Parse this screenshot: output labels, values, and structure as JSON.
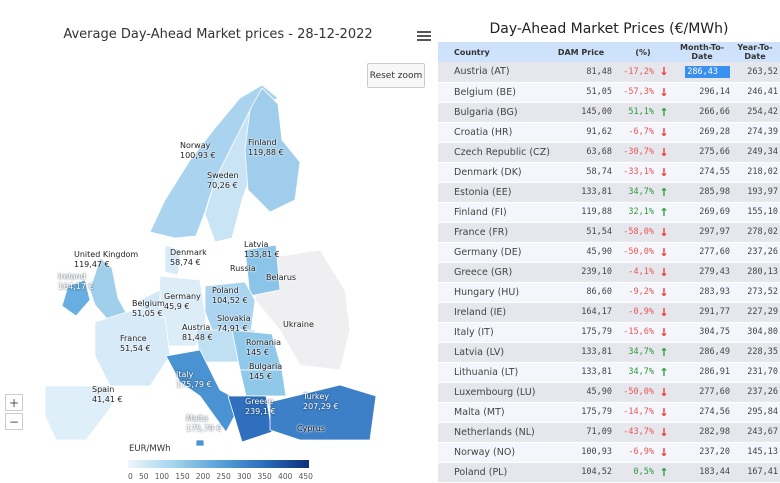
{
  "map": {
    "title": "Average Day-Ahead Market prices - 28-12-2022",
    "reset_zoom": "Reset zoom",
    "zoom_in": "+",
    "zoom_out": "−",
    "legend_title": "EUR/MWh",
    "legend_ticks": [
      "0",
      "50",
      "100",
      "150",
      "200",
      "250",
      "300",
      "350",
      "400",
      "450"
    ],
    "labels": [
      {
        "name": "Norway",
        "value": "100,93 €"
      },
      {
        "name": "Finland",
        "value": "119,88 €"
      },
      {
        "name": "Sweden",
        "value": "70,26 €"
      },
      {
        "name": "Latvia",
        "value": "133,81 €"
      },
      {
        "name": "Denmark",
        "value": "58,74 €"
      },
      {
        "name": "United Kingdom",
        "value": "119,47 €"
      },
      {
        "name": "Ireland",
        "value": "164,17 €"
      },
      {
        "name": "Russia",
        "value": ""
      },
      {
        "name": "Belarus",
        "value": ""
      },
      {
        "name": "Poland",
        "value": "104,52 €"
      },
      {
        "name": "Germany",
        "value": "45,9 €"
      },
      {
        "name": "Belgium",
        "value": "51,05 €"
      },
      {
        "name": "Slovakia",
        "value": "74,91 €"
      },
      {
        "name": "Ukraine",
        "value": ""
      },
      {
        "name": "Austria",
        "value": "81,48 €"
      },
      {
        "name": "France",
        "value": "51,54 €"
      },
      {
        "name": "Romania",
        "value": "145 €"
      },
      {
        "name": "Bulgaria",
        "value": "145 €"
      },
      {
        "name": "Italy",
        "value": "175,79 €"
      },
      {
        "name": "Spain",
        "value": "41,41 €"
      },
      {
        "name": "Greece",
        "value": "239,1 €"
      },
      {
        "name": "Turkey",
        "value": "207,29 €"
      },
      {
        "name": "Malta",
        "value": "175,79 €"
      },
      {
        "name": "Cyprus",
        "value": ""
      }
    ]
  },
  "table": {
    "title": "Day-Ahead Market Prices (€/MWh)",
    "headers": [
      "Country",
      "DAM Price",
      "(%)",
      "Month-To-Date",
      "Year-To-Date"
    ],
    "rows": [
      [
        "Austria (AT)",
        "81,48",
        "-17,2%",
        "down",
        "286,43",
        "263,52"
      ],
      [
        "Belgium (BE)",
        "51,05",
        "-57,3%",
        "down",
        "296,14",
        "246,41"
      ],
      [
        "Bulgaria (BG)",
        "145,00",
        "51,1%",
        "up",
        "266,66",
        "254,42"
      ],
      [
        "Croatia (HR)",
        "91,62",
        "-6,7%",
        "down",
        "269,28",
        "274,39"
      ],
      [
        "Czech Republic (CZ)",
        "63,68",
        "-30,7%",
        "down",
        "275,66",
        "249,34"
      ],
      [
        "Denmark (DK)",
        "58,74",
        "-33,1%",
        "down",
        "274,55",
        "218,02"
      ],
      [
        "Estonia (EE)",
        "133,81",
        "34,7%",
        "up",
        "285,98",
        "193,97"
      ],
      [
        "Finland (FI)",
        "119,88",
        "32,1%",
        "up",
        "269,69",
        "155,10"
      ],
      [
        "France (FR)",
        "51,54",
        "-58,0%",
        "down",
        "297,97",
        "278,02"
      ],
      [
        "Germany (DE)",
        "45,90",
        "-50,0%",
        "down",
        "277,60",
        "237,26"
      ],
      [
        "Greece (GR)",
        "239,10",
        "-4,1%",
        "down",
        "279,43",
        "280,13"
      ],
      [
        "Hungary (HU)",
        "86,60",
        "-9,2%",
        "down",
        "283,93",
        "273,52"
      ],
      [
        "Ireland (IE)",
        "164,17",
        "-0,9%",
        "down",
        "291,77",
        "227,29"
      ],
      [
        "Italy (IT)",
        "175,79",
        "-15,6%",
        "down",
        "304,75",
        "304,80"
      ],
      [
        "Latvia (LV)",
        "133,81",
        "34,7%",
        "up",
        "286,49",
        "228,35"
      ],
      [
        "Lithuania (LT)",
        "133,81",
        "34,7%",
        "up",
        "286,91",
        "231,70"
      ],
      [
        "Luxembourg (LU)",
        "45,90",
        "-50,0%",
        "down",
        "277,60",
        "237,26"
      ],
      [
        "Malta (MT)",
        "175,79",
        "-14,7%",
        "down",
        "274,56",
        "295,84"
      ],
      [
        "Netherlands (NL)",
        "71,09",
        "-43,7%",
        "down",
        "282,98",
        "243,67"
      ],
      [
        "Norway (NO)",
        "100,93",
        "-6,9%",
        "down",
        "237,20",
        "145,13"
      ],
      [
        "Poland (PL)",
        "104,52",
        "0,5%",
        "up",
        "183,44",
        "167,41"
      ]
    ]
  }
}
